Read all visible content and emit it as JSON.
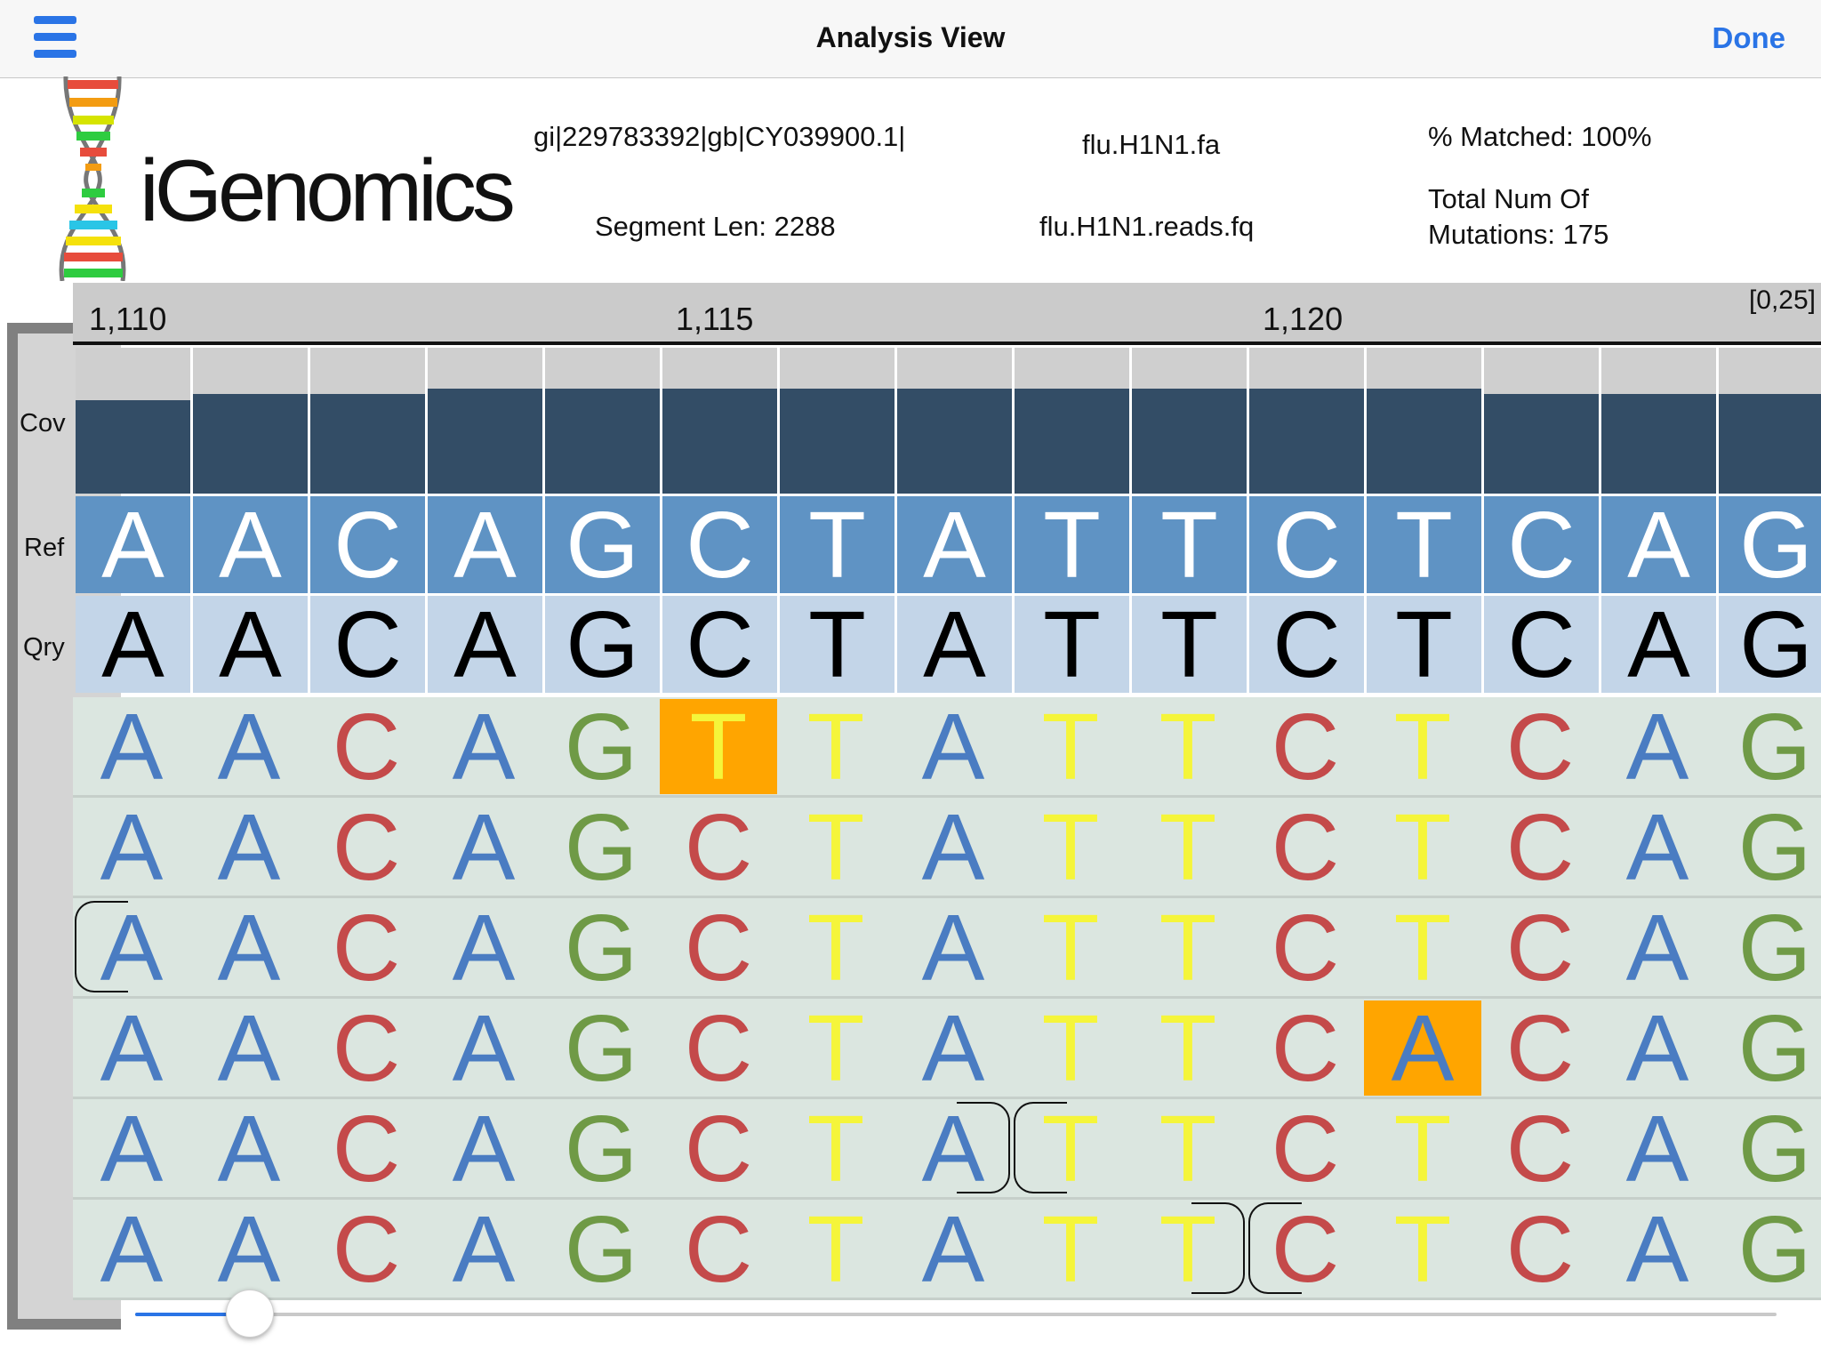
{
  "nav": {
    "title": "Analysis View",
    "done_label": "Done"
  },
  "header": {
    "logo_text": "iGenomics",
    "genome_id": "gi|229783392|gb|CY039900.1|",
    "segment_len": "Segment Len: 2288",
    "ref_file": "flu.H1N1.fa",
    "reads_file": "flu.H1N1.reads.fq",
    "percent_matched": "% Matched: 100%",
    "mutations_line1": "Total Num Of",
    "mutations_line2": "Mutations: 175"
  },
  "labels": {
    "cov": "Cov",
    "ref": "Ref",
    "qry": "Qry"
  },
  "ruler": {
    "ticks": [
      "1,110",
      "1,115",
      "1,120"
    ],
    "range": "[0,25]"
  },
  "coverage": {
    "max": 25,
    "values": [
      16,
      17,
      17,
      18,
      18,
      18,
      18,
      18,
      18,
      18,
      18,
      18,
      17,
      17,
      17
    ]
  },
  "reference": [
    "A",
    "A",
    "C",
    "A",
    "G",
    "C",
    "T",
    "A",
    "T",
    "T",
    "C",
    "T",
    "C",
    "A",
    "G"
  ],
  "query": [
    "A",
    "A",
    "C",
    "A",
    "G",
    "C",
    "T",
    "A",
    "T",
    "T",
    "C",
    "T",
    "C",
    "A",
    "G"
  ],
  "reads": [
    [
      "A",
      "A",
      "C",
      "A",
      "G",
      "T",
      "T",
      "A",
      "T",
      "T",
      "C",
      "T",
      "C",
      "A",
      "G"
    ],
    [
      "A",
      "A",
      "C",
      "A",
      "G",
      "C",
      "T",
      "A",
      "T",
      "T",
      "C",
      "T",
      "C",
      "A",
      "G"
    ],
    [
      "A",
      "A",
      "C",
      "A",
      "G",
      "C",
      "T",
      "A",
      "T",
      "T",
      "C",
      "T",
      "C",
      "A",
      "G"
    ],
    [
      "A",
      "A",
      "C",
      "A",
      "G",
      "C",
      "T",
      "A",
      "T",
      "T",
      "C",
      "A",
      "C",
      "A",
      "G"
    ],
    [
      "A",
      "A",
      "C",
      "A",
      "G",
      "C",
      "T",
      "A",
      "T",
      "T",
      "C",
      "T",
      "C",
      "A",
      "G"
    ],
    [
      "A",
      "A",
      "C",
      "A",
      "G",
      "C",
      "T",
      "A",
      "T",
      "T",
      "C",
      "T",
      "C",
      "A",
      "G"
    ]
  ],
  "mutations": [
    {
      "read": 0,
      "pos": 5
    },
    {
      "read": 3,
      "pos": 11
    }
  ],
  "read_bounds": [
    {
      "read": 2,
      "pos": 0,
      "type": "start"
    },
    {
      "read": 4,
      "pos": 7,
      "type": "end"
    },
    {
      "read": 4,
      "pos": 8,
      "type": "start"
    },
    {
      "read": 5,
      "pos": 9,
      "type": "end"
    },
    {
      "read": 5,
      "pos": 10,
      "type": "start"
    }
  ],
  "base_colors": {
    "A": "#4a7cc2",
    "C": "#c44a4a",
    "G": "#6f9a46",
    "T": "#f5f53a"
  },
  "slider": {
    "value": 0.07
  }
}
